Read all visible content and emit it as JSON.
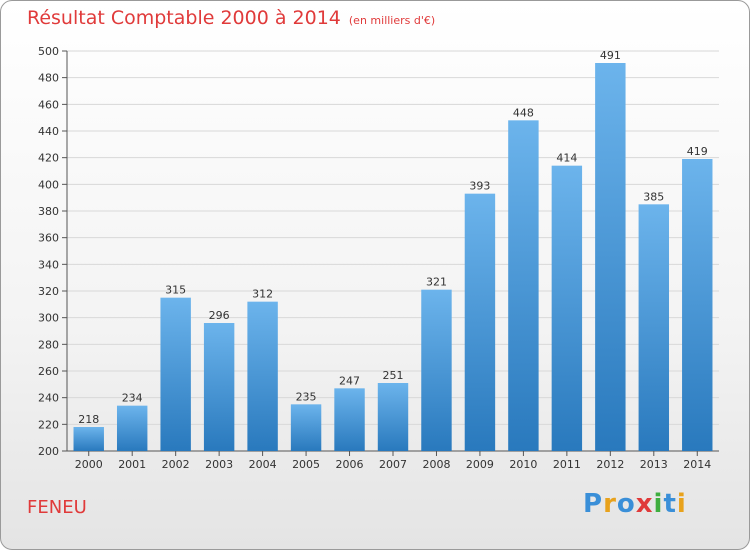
{
  "header": {
    "title": "Résultat Comptable 2000 à 2014",
    "subtitle": "(en milliers d'€)"
  },
  "footer": {
    "city": "FENEU",
    "logo": [
      "P",
      "r",
      "o",
      "x",
      "i",
      "t",
      "i"
    ],
    "logo_colors": [
      "#3a8fd8",
      "#e8a21c",
      "#3a8fd8",
      "#e03a3a",
      "#3fae3f",
      "#3a8fd8",
      "#e8a21c"
    ]
  },
  "colors": {
    "bar_top": "#6cb4ec",
    "bar_bottom": "#2979bd",
    "grid": "#d8d8d8",
    "title": "#e03a3a"
  },
  "chart_data": {
    "type": "bar",
    "title": "Résultat Comptable 2000 à 2014",
    "xlabel": "",
    "ylabel": "",
    "categories": [
      "2000",
      "2001",
      "2002",
      "2003",
      "2004",
      "2005",
      "2006",
      "2007",
      "2008",
      "2009",
      "2010",
      "2011",
      "2012",
      "2013",
      "2014"
    ],
    "values": [
      218,
      234,
      315,
      296,
      312,
      235,
      247,
      251,
      321,
      393,
      448,
      414,
      491,
      385,
      419
    ],
    "ylim": [
      200,
      500
    ],
    "yticks": [
      200,
      220,
      240,
      260,
      280,
      300,
      320,
      340,
      360,
      380,
      400,
      420,
      440,
      460,
      480,
      500
    ],
    "grid": true
  }
}
